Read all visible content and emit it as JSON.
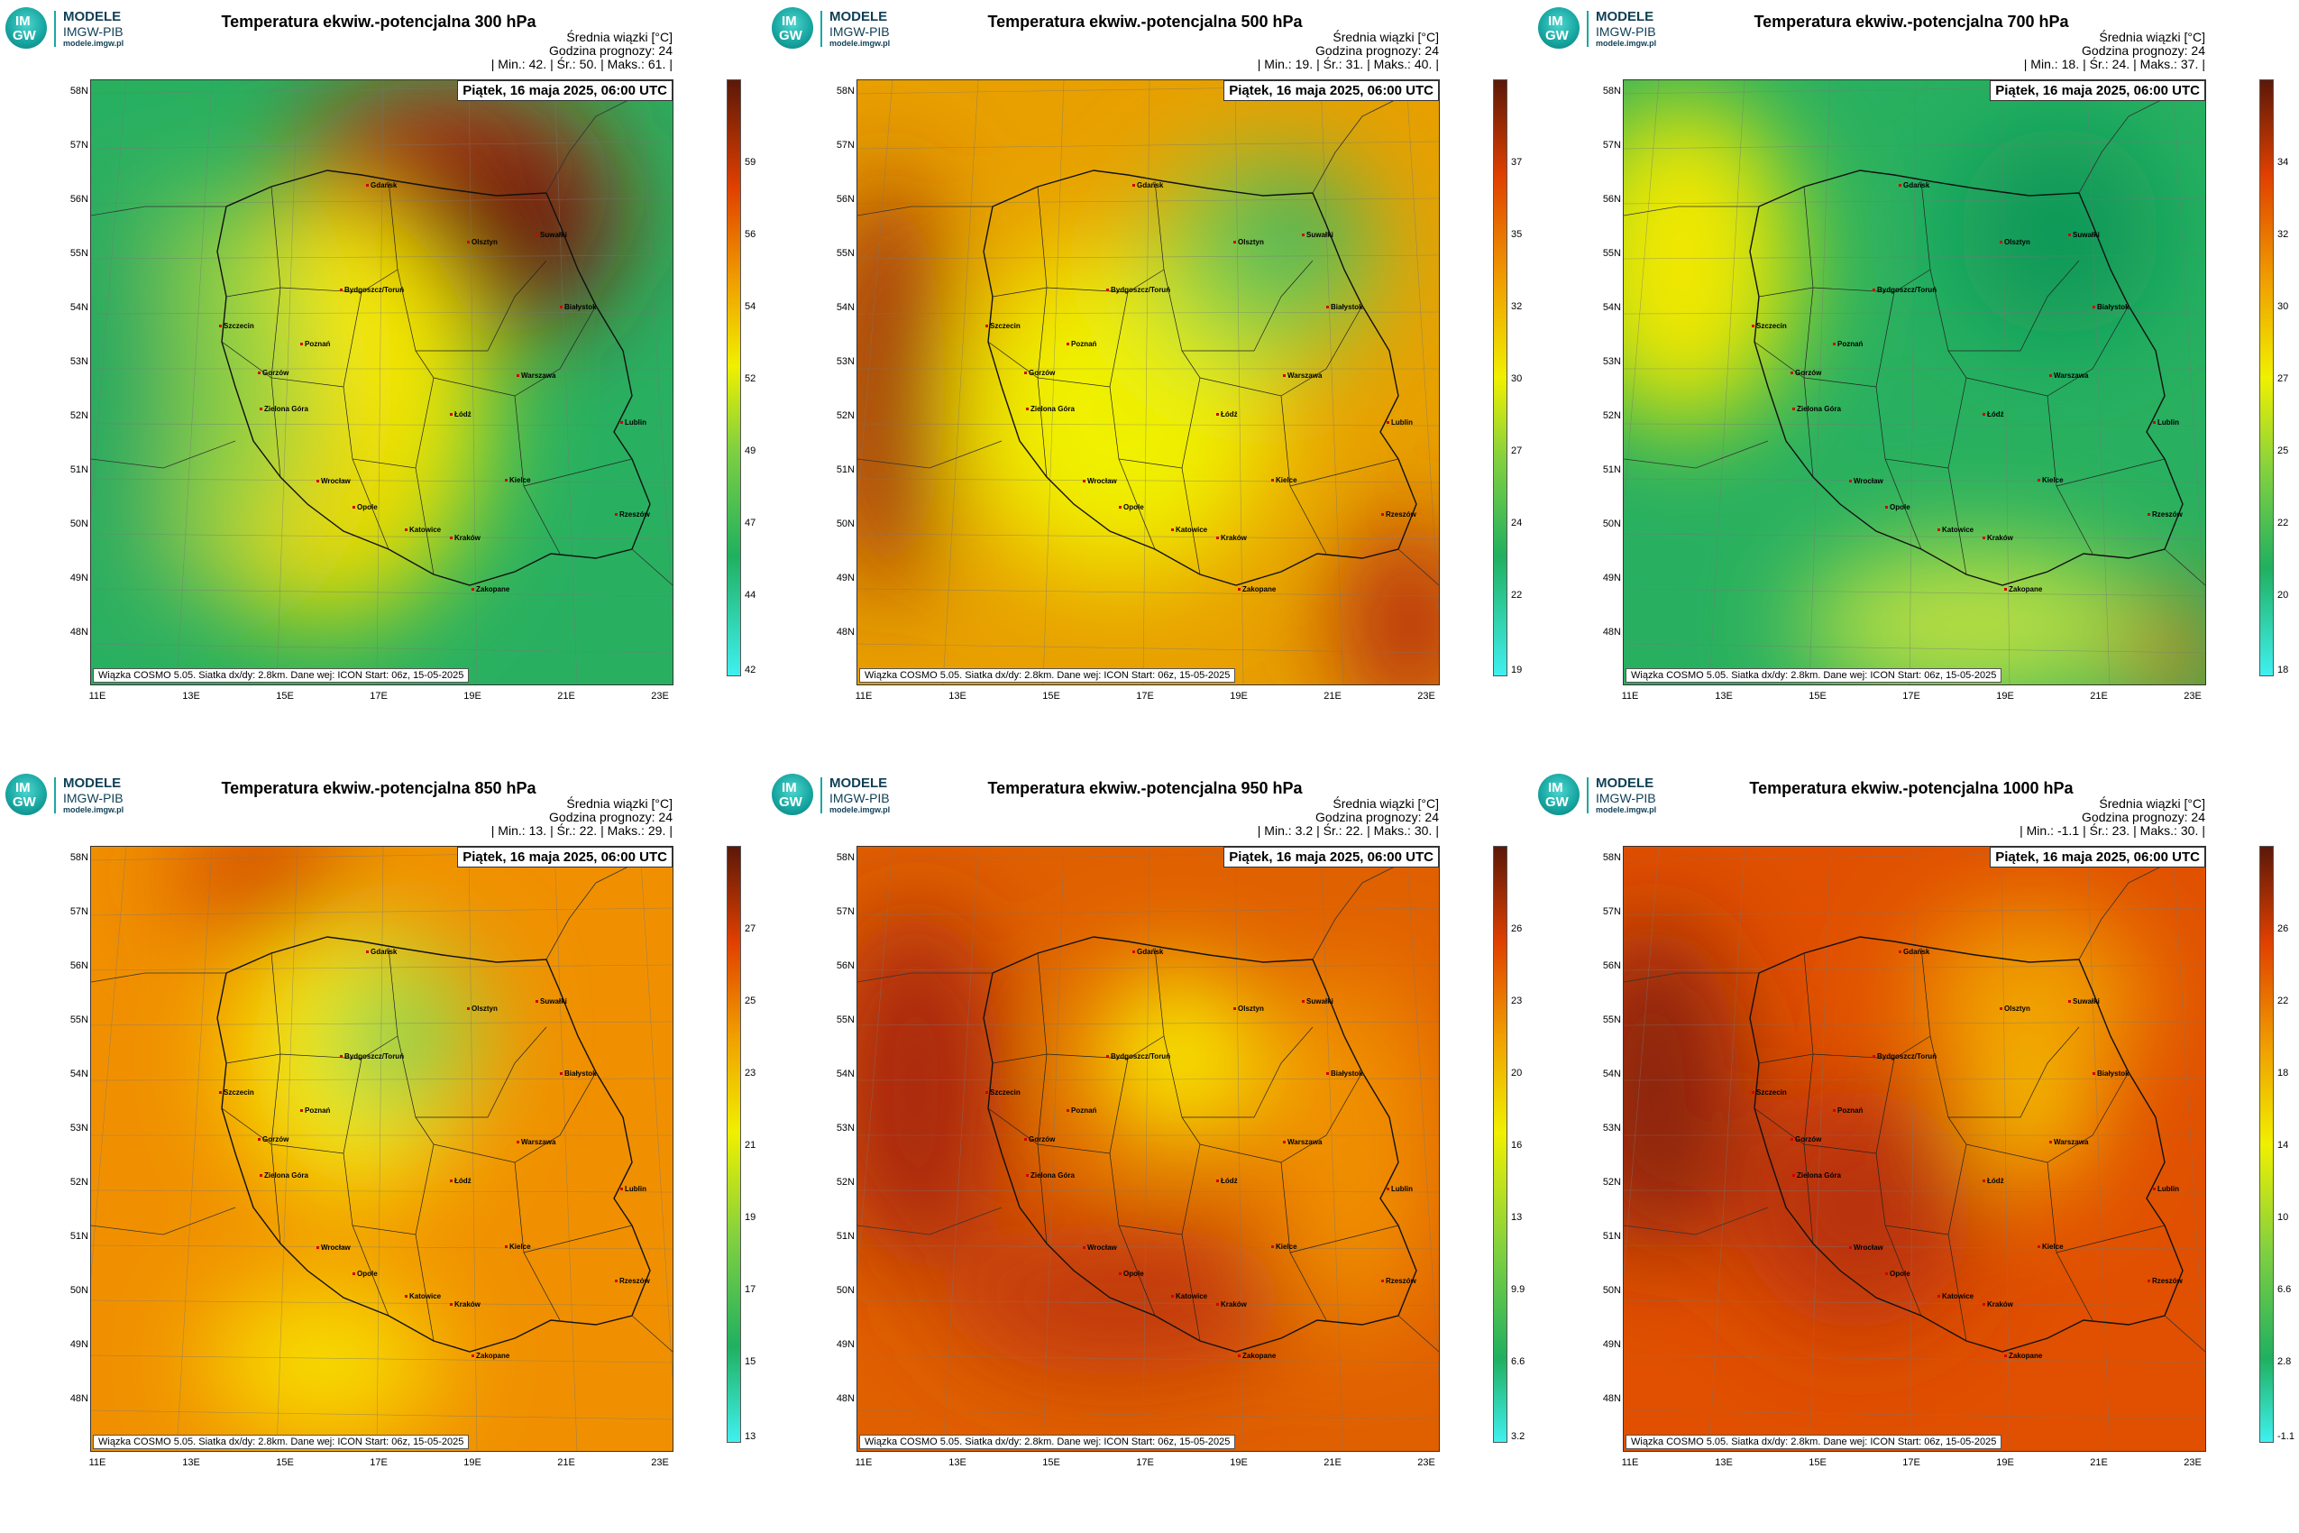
{
  "common": {
    "logo": {
      "line1": "MODELE",
      "line2": "IMGW-PIB",
      "line3": "modele.imgw.pl",
      "mark_top": "IM",
      "mark_bottom": "GW"
    },
    "subtitle": "Średnia wiązki [°C]",
    "forecast_hour": "Godzina prognozy: 24",
    "stat_min_label": "| Min.:",
    "stat_avg_label": "| Śr.:",
    "stat_max_label": "| Maks.:",
    "date": "Piątek, 16 maja 2025, 06:00 UTC",
    "footnote": "Wiązka COSMO 5.05. Siatka dx/dy: 2.8km. Dane wej: ICON Start: 06z, 15-05-2025",
    "lat_labels": [
      "58N",
      "57N",
      "56N",
      "55N",
      "54N",
      "53N",
      "52N",
      "51N",
      "50N",
      "49N",
      "48N"
    ],
    "lon_labels": [
      "11E",
      "13E",
      "15E",
      "17E",
      "19E",
      "21E",
      "23E"
    ],
    "cities": [
      "Gdańsk",
      "Olsztyn",
      "Suwałki",
      "Białystok",
      "Szczecin",
      "Gorzów",
      "Bydgoszcz/Toruń",
      "Poznań",
      "Warszawa",
      "Zielona Góra",
      "Łódź",
      "Lublin",
      "Wrocław",
      "Kielce",
      "Opole",
      "Rzeszów",
      "Katowice",
      "Kraków",
      "Zakopane"
    ],
    "colors": {
      "cyan": "#40f0f0",
      "green": "#20b060",
      "lime": "#a8e030",
      "yellow": "#f8f000",
      "orange": "#f0a000",
      "red": "#e04000",
      "darkred": "#5c1808"
    }
  },
  "panels": [
    {
      "title": "Temperatura ekwiw.-potencjalna 300 hPa",
      "min": "42.",
      "avg": "50.",
      "max": "61.",
      "colorbar_ticks": [
        "59",
        "56",
        "54",
        "52",
        "49",
        "47",
        "44",
        "42"
      ]
    },
    {
      "title": "Temperatura ekwiw.-potencjalna 500 hPa",
      "min": "19.",
      "avg": "31.",
      "max": "40.",
      "colorbar_ticks": [
        "37",
        "35",
        "32",
        "30",
        "27",
        "24",
        "22",
        "19"
      ]
    },
    {
      "title": "Temperatura ekwiw.-potencjalna 700 hPa",
      "min": "18.",
      "avg": "24.",
      "max": "37.",
      "colorbar_ticks": [
        "34",
        "32",
        "30",
        "27",
        "25",
        "22",
        "20",
        "18"
      ]
    },
    {
      "title": "Temperatura ekwiw.-potencjalna 850 hPa",
      "min": "13.",
      "avg": "22.",
      "max": "29.",
      "colorbar_ticks": [
        "27",
        "25",
        "23",
        "21",
        "19",
        "17",
        "15",
        "13"
      ]
    },
    {
      "title": "Temperatura ekwiw.-potencjalna 950 hPa",
      "min": "3.2",
      "avg": "22.",
      "max": "30.",
      "colorbar_ticks": [
        "26",
        "23",
        "20",
        "16",
        "13",
        "9.9",
        "6.6",
        "3.2"
      ]
    },
    {
      "title": "Temperatura ekwiw.-potencjalna 1000 hPa",
      "min": "-1.1",
      "avg": "23.",
      "max": "30.",
      "colorbar_ticks": [
        "26",
        "22",
        "18",
        "14",
        "10",
        "6.6",
        "2.8",
        "-1.1"
      ]
    }
  ]
}
